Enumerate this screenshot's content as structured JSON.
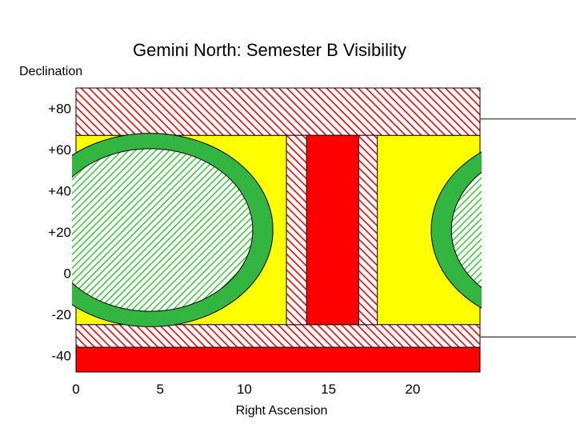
{
  "chart_data": {
    "type": "area",
    "title": "Gemini North: Semester B Visibility",
    "xlabel": "Right Ascension",
    "ylabel": "Declination",
    "xlim": [
      0,
      24
    ],
    "ylim": [
      -48,
      90
    ],
    "x_ticks": [
      0,
      5,
      10,
      15,
      20
    ],
    "x_tick_labels": [
      "0",
      "5",
      "10",
      "15",
      "20"
    ],
    "y_ticks": [
      80,
      60,
      40,
      20,
      0,
      -20,
      -40
    ],
    "y_tick_labels": [
      "+80",
      "+60",
      "+40",
      "+20",
      "0",
      "-20",
      "-40"
    ],
    "grid": false,
    "legend": "none",
    "regions": [
      {
        "role": "background",
        "fill": "yellow",
        "ra": [
          0,
          24
        ],
        "dec": [
          -25,
          67
        ]
      },
      {
        "role": "declination-limit-north",
        "fill": "red-hatch",
        "ra": [
          0,
          24
        ],
        "dec": [
          67,
          90
        ]
      },
      {
        "role": "declination-limit-south",
        "fill": "red-hatch",
        "ra": [
          0,
          24
        ],
        "dec": [
          -36,
          -25
        ]
      },
      {
        "role": "declination-limit-far-south",
        "fill": "red",
        "ra": [
          0,
          24
        ],
        "dec": [
          -48,
          -36
        ]
      },
      {
        "role": "sun-exclusion-hatch-left",
        "fill": "red-hatch",
        "ra": [
          12.5,
          13.7
        ],
        "dec": [
          -25,
          67
        ]
      },
      {
        "role": "sun-exclusion-core",
        "fill": "red",
        "ra": [
          13.7,
          16.8
        ],
        "dec": [
          -25,
          67
        ]
      },
      {
        "role": "sun-exclusion-hatch-right",
        "fill": "red-hatch",
        "ra": [
          16.8,
          17.9
        ],
        "dec": [
          -25,
          67
        ]
      }
    ],
    "zones": [
      {
        "role": "galactic-plane-left",
        "center_ra": 4.4,
        "center_dec": 21,
        "outer_ra_radius": 7.3,
        "outer_dec_radius": 47,
        "inner_ra_radius": 6.1,
        "inner_dec_radius": 39.5
      },
      {
        "role": "galactic-plane-right",
        "center_ra": 28.4,
        "center_dec": 21,
        "outer_ra_radius": 7.3,
        "outer_dec_radius": 47,
        "inner_ra_radius": 6.1,
        "inner_dec_radius": 39.5
      }
    ],
    "markers": [
      {
        "role": "upper-reference-line",
        "dec": 75
      },
      {
        "role": "lower-reference-line",
        "dec": -31
      }
    ],
    "colors": {
      "limit": "#ff0000",
      "hatch_background": "#ffffff",
      "visible": "#ffff00",
      "galactic_ring": "#33b541",
      "galactic_hatch": "#33cc33",
      "outline": "#000000"
    }
  }
}
